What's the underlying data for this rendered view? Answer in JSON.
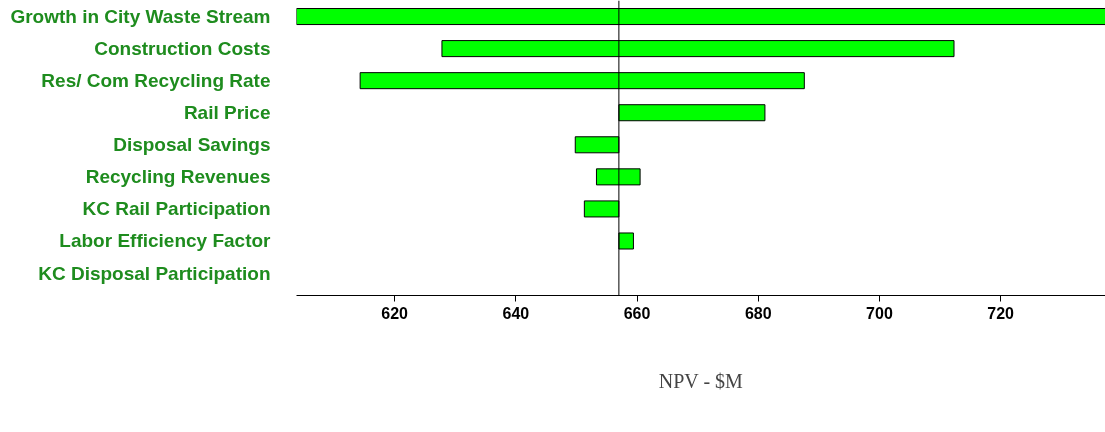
{
  "chart_data": {
    "type": "bar",
    "orientation": "horizontal",
    "xlabel": "NPV - $M",
    "categories": [
      "Growth in City Waste Stream",
      "Construction Costs",
      "Res/ Com Recycling Rate",
      "Rail Price",
      "Disposal Savings",
      "Recycling Revenues",
      "KC Rail Participation",
      "Labor Efficiency Factor",
      "KC Disposal Participation"
    ],
    "base": [
      603.8,
      627.8,
      614.3,
      657.0,
      649.8,
      653.3,
      651.3,
      657.0,
      null
    ],
    "values": [
      133.5,
      84.5,
      73.3,
      24.1,
      7.2,
      7.2,
      5.7,
      2.4,
      null
    ],
    "color": "#00ff00",
    "xlim": [
      603.8,
      737.3
    ],
    "xticks": [
      620,
      640,
      660,
      680,
      700,
      720
    ],
    "ref_lines": [
      {
        "axis": "x",
        "value": 657.0,
        "color": "#000000"
      }
    ],
    "grid": false
  }
}
